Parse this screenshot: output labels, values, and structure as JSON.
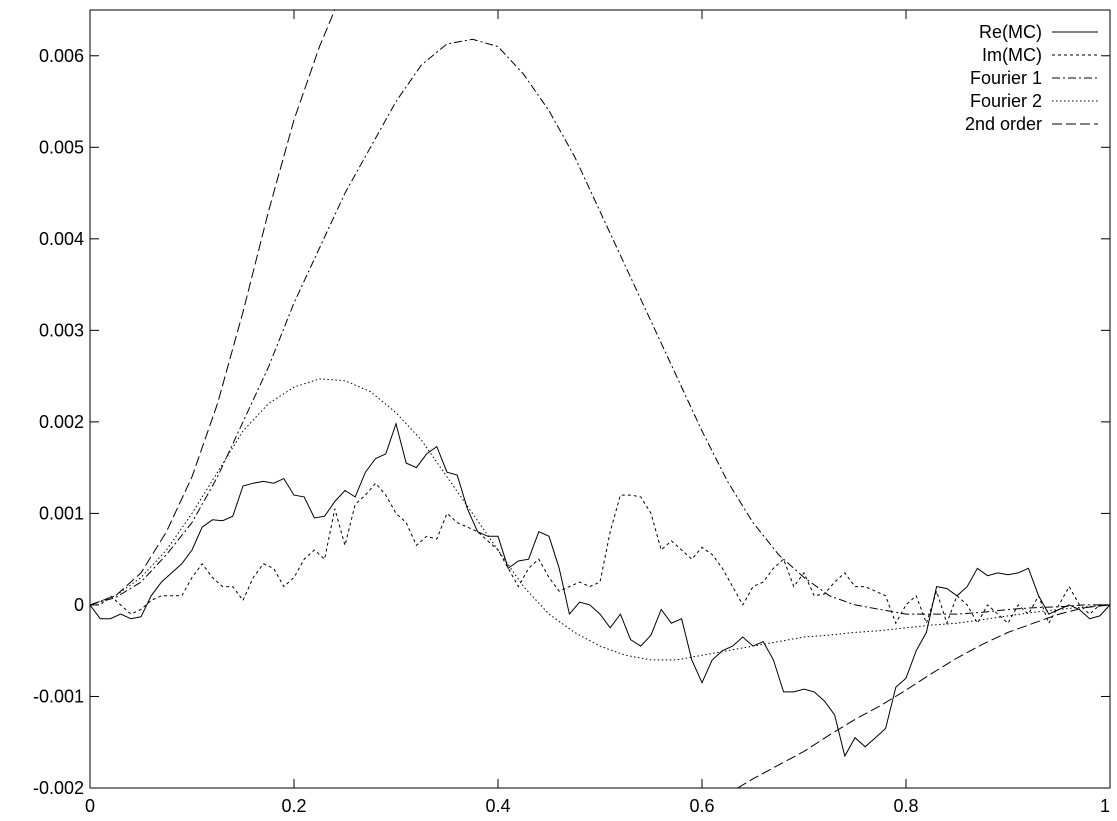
{
  "chart_data": {
    "type": "line",
    "title": "",
    "xlabel": "",
    "ylabel": "",
    "xlim": [
      0,
      1
    ],
    "ylim": [
      -0.002,
      0.0065
    ],
    "grid": false,
    "legend_position": "top-right",
    "x_ticks": [
      0,
      0.2,
      0.4,
      0.6,
      0.8,
      1
    ],
    "x_tick_labels": [
      "0",
      "0.2",
      "0.4",
      "0.6",
      "0.8",
      "1"
    ],
    "y_ticks": [
      -0.002,
      -0.001,
      0,
      0.001,
      0.002,
      0.003,
      0.004,
      0.005,
      0.006
    ],
    "y_tick_labels": [
      "-0.002",
      "-0.001",
      "0",
      "0.001",
      "0.002",
      "0.003",
      "0.004",
      "0.005",
      "0.006"
    ],
    "series": [
      {
        "name": "Re(MC)",
        "dash": "solid",
        "x": [
          0,
          0.01,
          0.02,
          0.03,
          0.04,
          0.05,
          0.06,
          0.07,
          0.08,
          0.09,
          0.1,
          0.11,
          0.12,
          0.13,
          0.14,
          0.15,
          0.16,
          0.17,
          0.18,
          0.19,
          0.2,
          0.21,
          0.22,
          0.23,
          0.24,
          0.25,
          0.26,
          0.27,
          0.28,
          0.29,
          0.3,
          0.31,
          0.32,
          0.33,
          0.34,
          0.35,
          0.36,
          0.37,
          0.38,
          0.39,
          0.4,
          0.41,
          0.42,
          0.43,
          0.44,
          0.45,
          0.46,
          0.47,
          0.48,
          0.49,
          0.5,
          0.51,
          0.52,
          0.53,
          0.54,
          0.55,
          0.56,
          0.57,
          0.58,
          0.59,
          0.6,
          0.61,
          0.62,
          0.63,
          0.64,
          0.65,
          0.66,
          0.67,
          0.68,
          0.69,
          0.7,
          0.71,
          0.72,
          0.73,
          0.74,
          0.75,
          0.76,
          0.77,
          0.78,
          0.79,
          0.8,
          0.81,
          0.82,
          0.83,
          0.84,
          0.85,
          0.86,
          0.87,
          0.88,
          0.89,
          0.9,
          0.91,
          0.92,
          0.93,
          0.94,
          0.95,
          0.96,
          0.97,
          0.98,
          0.99,
          1.0
        ],
        "y": [
          0,
          -0.00015,
          -0.00015,
          -0.0001,
          -0.00015,
          -0.00013,
          0.0001,
          0.00025,
          0.00035,
          0.00045,
          0.0006,
          0.00085,
          0.00093,
          0.00092,
          0.00097,
          0.0013,
          0.00133,
          0.00135,
          0.00133,
          0.00138,
          0.0012,
          0.00118,
          0.00095,
          0.00097,
          0.00113,
          0.00125,
          0.00118,
          0.00145,
          0.0016,
          0.00165,
          0.00198,
          0.00155,
          0.0015,
          0.00165,
          0.00173,
          0.00145,
          0.00142,
          0.00105,
          0.0008,
          0.00075,
          0.00075,
          0.0004,
          0.00048,
          0.0005,
          0.0008,
          0.00075,
          0.0004,
          -0.0001,
          3e-05,
          0.0,
          -0.0001,
          -0.00025,
          -0.0001,
          -0.00038,
          -0.00045,
          -0.00033,
          -5e-05,
          -0.0002,
          -0.00015,
          -0.0006,
          -0.00085,
          -0.0006,
          -0.0005,
          -0.00045,
          -0.00035,
          -0.00045,
          -0.0004,
          -0.0006,
          -0.00095,
          -0.00095,
          -0.00092,
          -0.00095,
          -0.00105,
          -0.0012,
          -0.00165,
          -0.00145,
          -0.00155,
          -0.00145,
          -0.00135,
          -0.0009,
          -0.0008,
          -0.0005,
          -0.0003,
          0.0002,
          0.00018,
          0.0001,
          0.0002,
          0.0004,
          0.00032,
          0.00035,
          0.00033,
          0.00035,
          0.0004,
          0.0001,
          -0.0001,
          -5e-05,
          0.0,
          -5e-05,
          -0.00015,
          -0.00012,
          0.0
        ]
      },
      {
        "name": "Im(MC)",
        "dash": "3,3",
        "x": [
          0,
          0.01,
          0.02,
          0.03,
          0.04,
          0.05,
          0.06,
          0.07,
          0.08,
          0.09,
          0.1,
          0.11,
          0.12,
          0.13,
          0.14,
          0.15,
          0.16,
          0.17,
          0.18,
          0.19,
          0.2,
          0.21,
          0.22,
          0.23,
          0.24,
          0.25,
          0.26,
          0.27,
          0.28,
          0.29,
          0.3,
          0.31,
          0.32,
          0.33,
          0.34,
          0.35,
          0.36,
          0.37,
          0.38,
          0.39,
          0.4,
          0.41,
          0.42,
          0.43,
          0.44,
          0.45,
          0.46,
          0.47,
          0.48,
          0.49,
          0.5,
          0.51,
          0.52,
          0.53,
          0.54,
          0.55,
          0.56,
          0.57,
          0.58,
          0.59,
          0.6,
          0.61,
          0.62,
          0.63,
          0.64,
          0.65,
          0.66,
          0.67,
          0.68,
          0.69,
          0.7,
          0.71,
          0.72,
          0.73,
          0.74,
          0.75,
          0.76,
          0.77,
          0.78,
          0.79,
          0.8,
          0.81,
          0.82,
          0.83,
          0.84,
          0.85,
          0.86,
          0.87,
          0.88,
          0.89,
          0.9,
          0.91,
          0.92,
          0.93,
          0.94,
          0.95,
          0.96,
          0.97,
          0.98,
          0.99,
          1.0
        ],
        "y": [
          0,
          0.0,
          0.0001,
          0.0,
          -0.0001,
          -5e-05,
          5e-05,
          0.0001,
          0.0001,
          0.0001,
          0.0003,
          0.00045,
          0.0003,
          0.0002,
          0.0002,
          5e-05,
          0.0003,
          0.00045,
          0.0004,
          0.0002,
          0.0003,
          0.0005,
          0.0006,
          0.0005,
          0.00105,
          0.00065,
          0.0011,
          0.0012,
          0.00133,
          0.0012,
          0.001,
          0.0009,
          0.00065,
          0.00075,
          0.00072,
          0.001,
          0.0009,
          0.00085,
          0.0008,
          0.0007,
          0.0006,
          0.0004,
          0.0002,
          0.0004,
          0.0005,
          0.0003,
          0.00015,
          0.0002,
          0.00025,
          0.0002,
          0.00025,
          0.0008,
          0.0012,
          0.0012,
          0.00118,
          0.001,
          0.0006,
          0.0007,
          0.0006,
          0.0005,
          0.00063,
          0.00055,
          0.0004,
          0.0002,
          0.0,
          0.0002,
          0.00025,
          0.0004,
          0.0005,
          0.0002,
          0.00035,
          0.0001,
          0.00012,
          0.00025,
          0.00035,
          0.0002,
          0.0002,
          0.00015,
          0.0001,
          -0.0002,
          0.0,
          0.0001,
          -0.0002,
          0.00015,
          -0.0002,
          0.0001,
          0.0,
          -0.0002,
          0.0,
          -0.0001,
          -0.0002,
          0.0,
          -0.0001,
          0.0001,
          -0.0002,
          0.0,
          0.0002,
          0.0,
          -0.0001,
          0.0,
          0.0
        ]
      },
      {
        "name": "Fourier 1",
        "dash": "8,3,2,3",
        "x": [
          0,
          0.025,
          0.05,
          0.075,
          0.1,
          0.125,
          0.15,
          0.175,
          0.2,
          0.225,
          0.25,
          0.275,
          0.3,
          0.325,
          0.35,
          0.375,
          0.4,
          0.425,
          0.45,
          0.475,
          0.5,
          0.525,
          0.55,
          0.575,
          0.6,
          0.625,
          0.65,
          0.675,
          0.7,
          0.725,
          0.75,
          0.775,
          0.8,
          0.825,
          0.85,
          0.875,
          0.9,
          0.925,
          0.95,
          0.975,
          1.0
        ],
        "y": [
          0,
          8e-05,
          0.00025,
          0.00055,
          0.0009,
          0.0014,
          0.002,
          0.0026,
          0.0033,
          0.0039,
          0.0045,
          0.005,
          0.0055,
          0.0059,
          0.00613,
          0.00618,
          0.0061,
          0.0058,
          0.0054,
          0.0049,
          0.0043,
          0.0037,
          0.0031,
          0.0025,
          0.0019,
          0.00135,
          0.0009,
          0.00055,
          0.0003,
          0.0001,
          0.0,
          -5e-05,
          -0.0001,
          -0.0001,
          -0.0001,
          -8e-05,
          -5e-05,
          -3e-05,
          -2e-05,
          0.0,
          0.0
        ]
      },
      {
        "name": "Fourier 2",
        "dash": "1.5,2.5",
        "x": [
          0,
          0.025,
          0.05,
          0.075,
          0.1,
          0.125,
          0.15,
          0.175,
          0.2,
          0.225,
          0.25,
          0.275,
          0.3,
          0.325,
          0.35,
          0.375,
          0.4,
          0.425,
          0.45,
          0.475,
          0.5,
          0.525,
          0.55,
          0.575,
          0.6,
          0.625,
          0.65,
          0.675,
          0.7,
          0.725,
          0.75,
          0.775,
          0.8,
          0.825,
          0.85,
          0.875,
          0.9,
          0.925,
          0.95,
          0.975,
          1.0
        ],
        "y": [
          0,
          0.0001,
          0.0003,
          0.0006,
          0.001,
          0.00145,
          0.0019,
          0.0022,
          0.00238,
          0.00247,
          0.00245,
          0.00233,
          0.0021,
          0.0018,
          0.0014,
          0.001,
          0.0006,
          0.0002,
          -0.0001,
          -0.0003,
          -0.00045,
          -0.00055,
          -0.0006,
          -0.0006,
          -0.00055,
          -0.0005,
          -0.00045,
          -0.0004,
          -0.00035,
          -0.00033,
          -0.0003,
          -0.00028,
          -0.00025,
          -0.00022,
          -0.0002,
          -0.00016,
          -0.00012,
          -8e-05,
          -5e-05,
          -2e-05,
          0.0
        ]
      },
      {
        "name": "2nd order",
        "dash": "10,4",
        "x": [
          0,
          0.025,
          0.05,
          0.075,
          0.1,
          0.125,
          0.15,
          0.175,
          0.2,
          0.225,
          0.24,
          0.635,
          0.65,
          0.675,
          0.7,
          0.725,
          0.75,
          0.775,
          0.8,
          0.825,
          0.85,
          0.875,
          0.9,
          0.925,
          0.95,
          0.975,
          1.0
        ],
        "y": [
          0,
          0.0001,
          0.00035,
          0.0008,
          0.0014,
          0.0022,
          0.0032,
          0.0043,
          0.0053,
          0.0061,
          0.0065,
          -0.002,
          -0.0019,
          -0.00175,
          -0.0016,
          -0.00142,
          -0.00125,
          -0.0011,
          -0.00093,
          -0.00075,
          -0.00058,
          -0.00043,
          -0.0003,
          -0.0002,
          -0.0001,
          -3e-05,
          0.0
        ]
      },
      {
        "name": "",
        "dash": "1.5,2.5",
        "x": [
          0,
          1
        ],
        "y": [
          0,
          0
        ]
      }
    ]
  }
}
